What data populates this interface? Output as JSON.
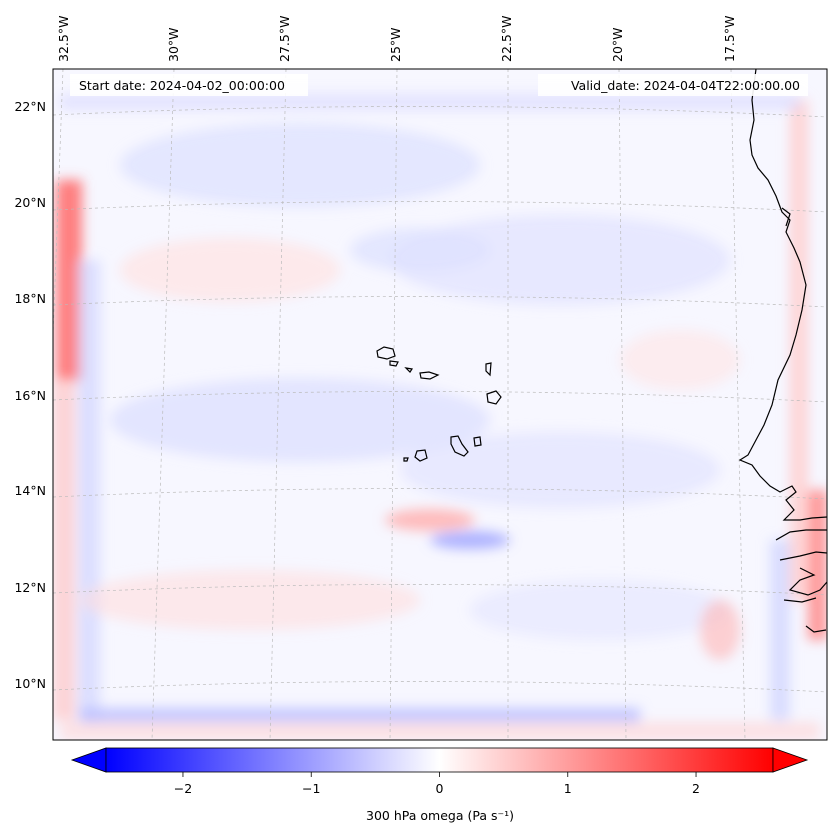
{
  "map": {
    "header": {
      "start_date": "Start date: 2024-04-02_00:00:00",
      "valid_date": "Valid_date: 2024-04-04T22:00:00.00"
    },
    "longitude_labels": [
      "32.5°W",
      "30°W",
      "27.5°W",
      "25°W",
      "22.5°W",
      "20°W",
      "17.5°W"
    ],
    "latitude_labels": [
      "22°N",
      "20°N",
      "18°N",
      "16°N",
      "14°N",
      "12°N",
      "10°N"
    ],
    "colorbar": {
      "label": "300 hPa omega (Pa s⁻¹)",
      "ticks": [
        "−2",
        "−1",
        "0",
        "1",
        "2"
      ],
      "tick_values": [
        -2,
        -1,
        0,
        1,
        2
      ],
      "range": [
        -2.6,
        2.6
      ],
      "colors": {
        "negative": "#0000ff",
        "zero": "#ffffff",
        "positive": "#ff0000"
      }
    },
    "colors": {
      "coastline": "#000000",
      "gridline": "#bbbbbb",
      "field_base": "#f7f7ff"
    }
  }
}
